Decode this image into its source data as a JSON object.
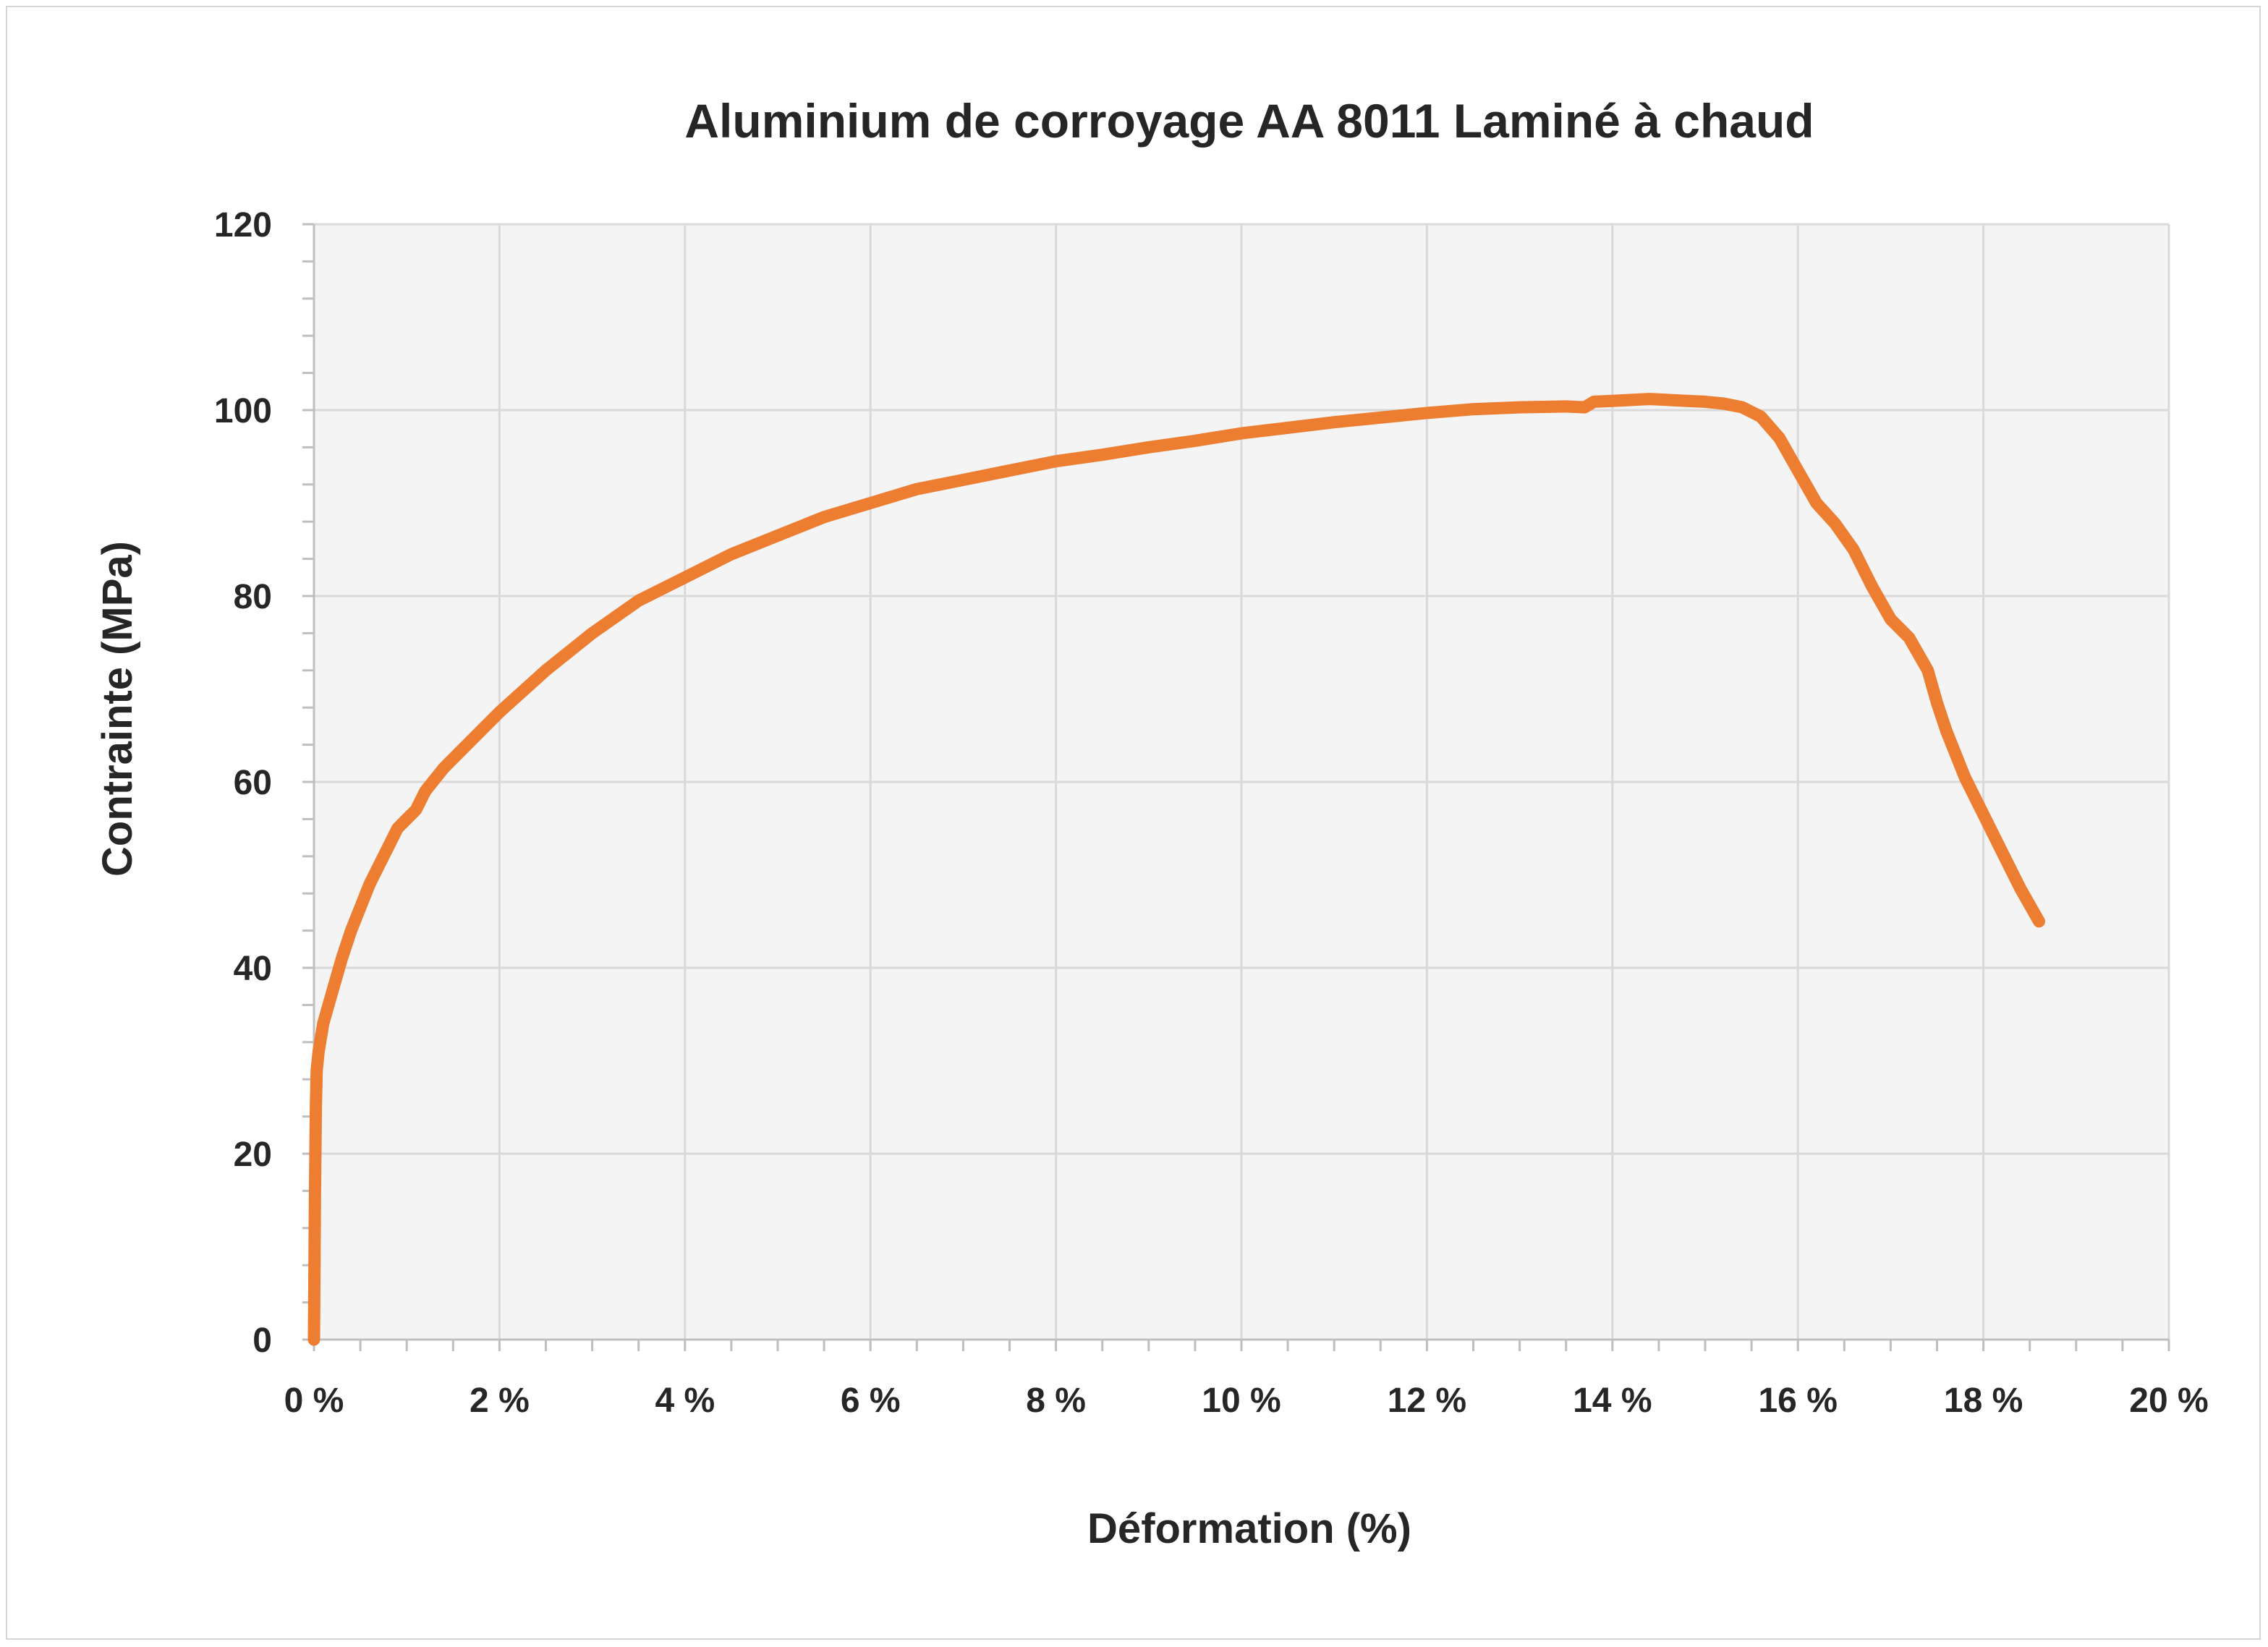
{
  "chart_data": {
    "type": "line",
    "title": "Aluminium de corroyage AA 8011 Laminé à chaud",
    "xlabel": "Déformation (%)",
    "ylabel": "Contrainte (MPa)",
    "xlim": [
      0,
      20
    ],
    "ylim": [
      0,
      120
    ],
    "x_ticks": [
      0,
      2,
      4,
      6,
      8,
      10,
      12,
      14,
      16,
      18,
      20
    ],
    "x_tick_labels": [
      "0 %",
      "2 %",
      "4 %",
      "6 %",
      "8 %",
      "10 %",
      "12 %",
      "14 %",
      "16 %",
      "18 %",
      "20 %"
    ],
    "y_ticks": [
      0,
      20,
      40,
      60,
      80,
      100,
      120
    ],
    "y_tick_labels": [
      "0",
      "20",
      "40",
      "60",
      "80",
      "100",
      "120"
    ],
    "grid": true,
    "legend": "none",
    "colors": {
      "series": "#ed7d31",
      "plot_background": "#f4f4f4",
      "gridline": "#d9d9d9",
      "text": "#262626"
    },
    "series": [
      {
        "x": [
          0.0,
          0.01,
          0.02,
          0.03,
          0.05,
          0.1,
          0.2,
          0.3,
          0.4,
          0.5,
          0.6,
          0.7,
          0.8,
          0.9,
          1.0,
          1.1,
          1.15,
          1.2,
          1.4,
          1.6,
          1.8,
          2.0,
          2.5,
          3.0,
          3.5,
          4.0,
          4.5,
          5.0,
          5.5,
          6.0,
          6.5,
          7.0,
          7.5,
          8.0,
          8.5,
          9.0,
          9.5,
          10.0,
          10.5,
          11.0,
          11.5,
          12.0,
          12.5,
          13.0,
          13.5,
          13.7,
          13.75,
          13.8,
          14.0,
          14.4,
          14.8,
          15.0,
          15.2,
          15.4,
          15.6,
          15.8,
          16.0,
          16.2,
          16.4,
          16.6,
          16.8,
          17.0,
          17.2,
          17.4,
          17.5,
          17.6,
          17.8,
          18.0,
          18.2,
          18.4,
          18.6
        ],
        "y": [
          0,
          15,
          25,
          29,
          31,
          34,
          37.5,
          41,
          44,
          46.5,
          49,
          51,
          53,
          55,
          56,
          57,
          58,
          59,
          61.5,
          63.5,
          65.5,
          67.5,
          72,
          76,
          79.5,
          82,
          84.5,
          86.5,
          88.5,
          90,
          91.5,
          92.5,
          93.5,
          94.5,
          95.2,
          96,
          96.7,
          97.5,
          98.1,
          98.7,
          99.2,
          99.7,
          100.1,
          100.3,
          100.4,
          100.3,
          100.6,
          100.9,
          101.0,
          101.2,
          101.0,
          100.9,
          100.7,
          100.3,
          99.3,
          97.0,
          93.5,
          90.0,
          87.8,
          85.0,
          81.0,
          77.5,
          75.5,
          72.0,
          68.5,
          65.5,
          60.5,
          56.5,
          52.5,
          48.5,
          45.0
        ]
      }
    ]
  }
}
